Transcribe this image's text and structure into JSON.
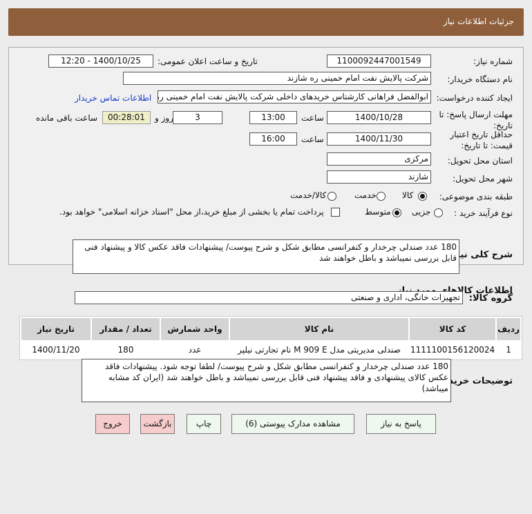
{
  "header": {
    "title": "جزئیات اطلاعات نیاز"
  },
  "form": {
    "need_number_label": "شماره نیاز:",
    "need_number": "1100092447001549",
    "announce_label": "تاریخ و ساعت اعلان عمومی:",
    "announce_value": "1400/10/25 - 12:20",
    "buyer_label": "نام دستگاه خریدار:",
    "buyer_value": "شرکت پالایش نفت امام خمینی  ره  شازند",
    "creator_label": "ایجاد کننده درخواست:",
    "creator_value": "ابوالفضل فراهانی کارشناس خریدهای داخلی شرکت پالایش نفت امام خمینی  ره",
    "contact_link": "اطلاعات تماس خریدار",
    "deadline_label": "مهلت ارسال پاسخ: تا تاریخ:",
    "deadline_date": "1400/10/28",
    "time_label": "ساعت",
    "deadline_time": "13:00",
    "days": "3",
    "days_label": "روز و",
    "remaining": "00:28:01",
    "remaining_label": "ساعت باقی مانده",
    "validity_label": "حداقل تاریخ اعتبار قیمت: تا تاریخ:",
    "validity_date": "1400/11/30",
    "validity_time": "16:00",
    "province_label": "استان محل تحویل:",
    "province": "مرکزی",
    "city_label": "شهر محل تحویل:",
    "city": "شازند",
    "category_label": "طبقه بندی موضوعی:",
    "category_options": [
      "کالا",
      "خدمت",
      "کالا/خدمت"
    ],
    "category_selected": "کالا",
    "process_label": "نوع فرآیند خرید :",
    "process_options": [
      "جزیی",
      "متوسط"
    ],
    "process_selected": "متوسط",
    "payment_note": "پرداخت تمام یا بخشی از مبلغ خرید،از محل \"اسناد خزانه اسلامی\" خواهد بود."
  },
  "description": {
    "label": "شرح کلی نیاز:",
    "text": "180 عدد صندلی چرخدار و کنفرانسی مطابق شکل و شرح پیوست/ پیشنهادات فاقد عکس کالا و  پیشنهاد فنی قابل بررسی نمیباشد و باطل خواهند شد"
  },
  "goods": {
    "heading": "اطلاعات کالاهای مورد نیاز",
    "group_label": "گروه کالا:",
    "group_value": "تجهیزات خانگی، اداری و صنعتی",
    "columns": [
      "ردیف",
      "کد کالا",
      "نام کالا",
      "واحد شمارش",
      "تعداد / مقدار",
      "تاریخ نیاز"
    ],
    "rows": [
      [
        "1",
        "1111100156120024",
        "صندلی مدیریتی مدل M 909 E نام تجارتی نیلپر",
        "عدد",
        "180",
        "1400/11/20"
      ]
    ]
  },
  "notes": {
    "label": "توضیحات خریدار:",
    "text": "180 عدد صندلی چرخدار و کنفرانسی مطابق شکل و شرح پیوست/ لطفا توجه شود. پیشنهادات فاقد عکس کالای پیشنهادی و فاقد پیشنهاد فنی قابل بررسی نمیباشد و باطل خواهند شد (ایران کد مشابه میباشد)"
  },
  "buttons": {
    "reply": "پاسخ به نیاز",
    "attachments": "مشاهده مدارک پیوستی (6)",
    "print": "چاپ",
    "back": "بازگشت",
    "exit": "خروج"
  },
  "colors": {
    "header": "#8e5f3a",
    "remaining_bg": "#f1efc8",
    "exit_bg": "#f6cccc"
  }
}
